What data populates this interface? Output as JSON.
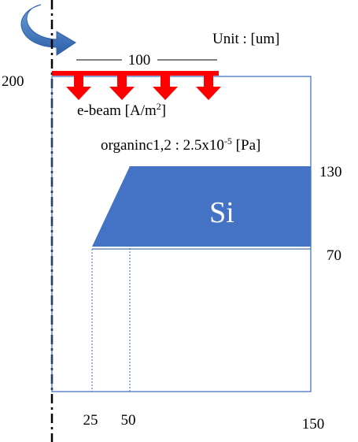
{
  "unit": "Unit : [um]",
  "dimensions": {
    "width": "100",
    "height": "200",
    "si_top": "130",
    "si_bottom": "70",
    "x_25": "25",
    "x_50": "50",
    "x_150": "150"
  },
  "ebeam": {
    "label": "e-beam [A/m",
    "superscript": "2",
    "suffix": "]"
  },
  "pressure": {
    "label": "organinc1,2 : 2.5x10",
    "superscript": "-5",
    "suffix": " [Pa]"
  },
  "material": "Si"
}
